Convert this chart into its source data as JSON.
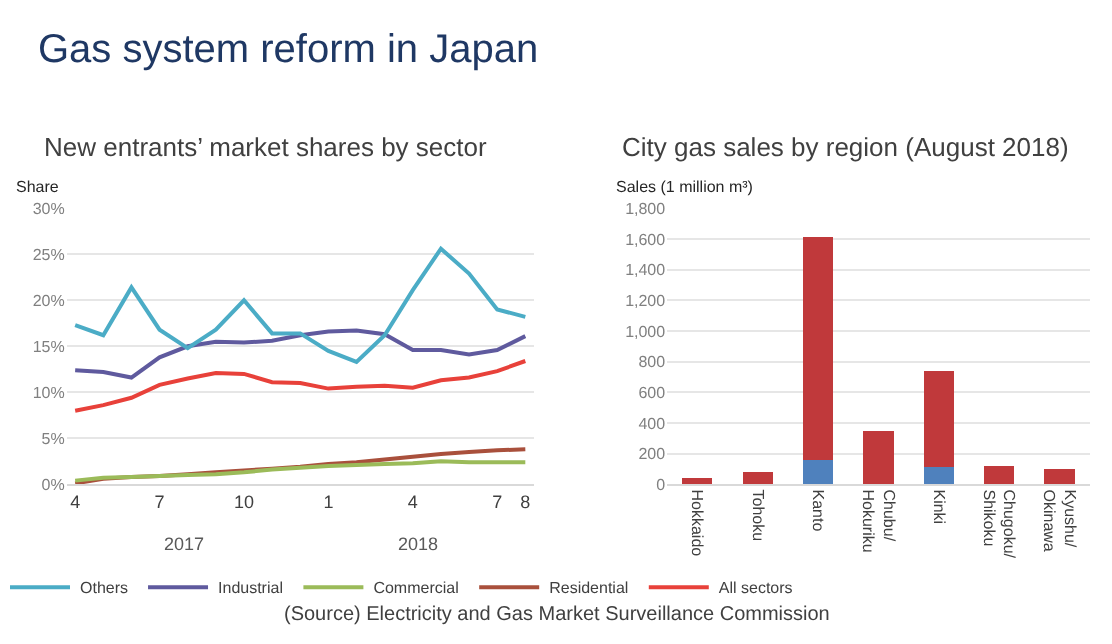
{
  "chart_data": [
    {
      "type": "other",
      "title": "Gas system reform in Japan",
      "annotations": [
        "(Source) Electricity and Gas Market Surveillance Commission"
      ]
    },
    {
      "type": "line",
      "title": "New entrants’ market shares by sector",
      "ylabel": "Share",
      "categories": [
        "4",
        null,
        null,
        "7",
        null,
        null,
        "10",
        null,
        null,
        "1",
        null,
        null,
        "4",
        null,
        null,
        "7",
        "8"
      ],
      "series": [
        {
          "name": "All sectors",
          "color": "#e8413a",
          "values": [
            8.0,
            8.6,
            9.4,
            10.8,
            11.5,
            12.1,
            12.0,
            11.1,
            11.0,
            10.4,
            10.6,
            10.7,
            10.5,
            11.3,
            11.6,
            12.3,
            13.4
          ]
        },
        {
          "name": "Residential",
          "color": "#a9503c",
          "values": [
            0.1,
            0.6,
            0.8,
            0.9,
            1.1,
            1.3,
            1.5,
            1.7,
            1.9,
            2.2,
            2.4,
            2.7,
            3.0,
            3.3,
            3.5,
            3.7,
            3.8
          ]
        },
        {
          "name": "Commercial",
          "color": "#9bbb59",
          "values": [
            0.4,
            0.7,
            0.8,
            0.9,
            1.0,
            1.1,
            1.3,
            1.6,
            1.8,
            2.0,
            2.1,
            2.2,
            2.3,
            2.5,
            2.4,
            2.4,
            2.4
          ]
        },
        {
          "name": "Industrial",
          "color": "#5f5a9e",
          "values": [
            12.4,
            12.2,
            11.6,
            13.8,
            15.0,
            15.5,
            15.4,
            15.6,
            16.2,
            16.6,
            16.7,
            16.3,
            14.6,
            14.6,
            14.1,
            14.6,
            16.1
          ]
        },
        {
          "name": "Others",
          "color": "#4bacc6",
          "values": [
            17.3,
            16.2,
            21.4,
            16.8,
            14.8,
            16.8,
            20.0,
            16.4,
            16.4,
            14.5,
            13.3,
            16.2,
            21.1,
            25.6,
            22.9,
            19.0,
            18.2
          ]
        }
      ],
      "ylim": [
        0,
        30
      ],
      "yticks": [
        {
          "value": 0,
          "label": "0%"
        },
        {
          "value": 5,
          "label": "5%"
        },
        {
          "value": 10,
          "label": "10%"
        },
        {
          "value": 15,
          "label": "15%"
        },
        {
          "value": 20,
          "label": "20%"
        },
        {
          "value": 25,
          "label": "25%"
        },
        {
          "value": 30,
          "label": "30%"
        }
      ],
      "annotations": [
        "2017",
        "2018"
      ],
      "grid": "y",
      "legend": "bottom",
      "marker": "none",
      "line_style": "solid"
    },
    {
      "type": "bar",
      "title": "City gas sales by region (August 2018)",
      "ylabel": "Sales (1 million m³)",
      "categories": [
        "Hokkaido",
        "Tohoku",
        "Kanto",
        "Chubu/ Hokuriku",
        "Kinki",
        "Chugoku/ Shikoku",
        "Kyushu/ Okinawa"
      ],
      "stacked": true,
      "series": [
        {
          "color": "#4f81bd",
          "values": [
            0,
            0,
            160,
            0,
            110,
            0,
            0
          ]
        },
        {
          "color": "#c0393b",
          "values": [
            40,
            80,
            1450,
            350,
            630,
            120,
            100
          ]
        }
      ],
      "ylim": [
        0,
        1800
      ],
      "yticks": [
        {
          "value": 0,
          "label": "0"
        },
        {
          "value": 200,
          "label": "200"
        },
        {
          "value": 400,
          "label": "400"
        },
        {
          "value": 600,
          "label": "600"
        },
        {
          "value": 800,
          "label": "800"
        },
        {
          "value": 1000,
          "label": "1,000"
        },
        {
          "value": 1200,
          "label": "1,200"
        },
        {
          "value": 1400,
          "label": "1,400"
        },
        {
          "value": 1600,
          "label": "1,600"
        },
        {
          "value": 1800,
          "label": "1,800"
        }
      ],
      "grid": "y",
      "legend": false
    }
  ]
}
